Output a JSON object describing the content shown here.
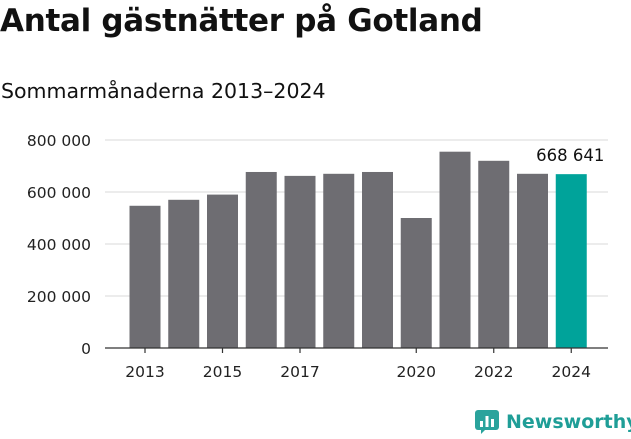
{
  "header": {
    "title": "Antal gästnätter på Gotland",
    "subtitle": "Sommarmånaderna 2013–2024"
  },
  "chart_data": {
    "type": "bar",
    "title": "Antal gästnätter på Gotland",
    "subtitle": "Sommarmånaderna 2013–2024",
    "xlabel": "",
    "ylabel": "",
    "categories": [
      "2013",
      "2014",
      "2015",
      "2016",
      "2017",
      "2018",
      "2019",
      "2020",
      "2021",
      "2022",
      "2023",
      "2024"
    ],
    "x_tick_labels": [
      "2013",
      "2015",
      "2017",
      "2020",
      "2022",
      "2024"
    ],
    "values": [
      547000,
      570000,
      590000,
      677000,
      662000,
      670000,
      677000,
      500000,
      755000,
      720000,
      670000,
      668641
    ],
    "ylim": [
      0,
      800000
    ],
    "y_ticks": [
      0,
      200000,
      400000,
      600000,
      800000
    ],
    "y_tick_labels": [
      "0",
      "200 000",
      "400 000",
      "600 000",
      "800 000"
    ],
    "grid": true,
    "highlight_index": 11,
    "annotation": {
      "category": "2024",
      "text": "668 641"
    },
    "colors": {
      "bar": "#6e6d72",
      "highlight": "#00a39a",
      "grid": "#d9d9d9",
      "axis": "#333333"
    }
  },
  "branding": {
    "name": "Newsworthy",
    "icon": "newsworthy-logo-icon",
    "color": "#1f9e97"
  }
}
